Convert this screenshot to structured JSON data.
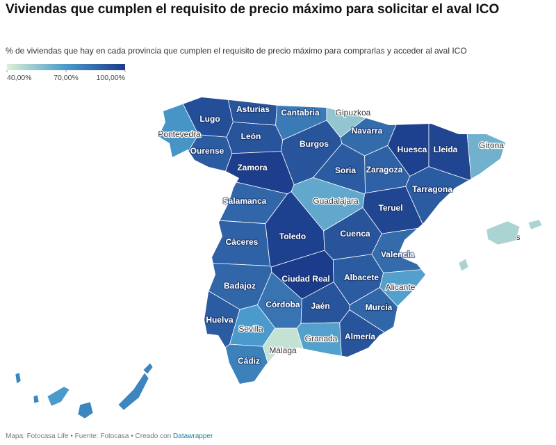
{
  "chart_data": {
    "type": "choropleth",
    "title": "Viviendas que cumplen el requisito de precio máximo para solicitar el aval ICO",
    "subtitle": "% de viviendas que hay en cada provincia que cumplen el requisito de precio máximo para comprarlas y acceder al aval ICO",
    "colors": [
      "#dcf0d6",
      "#4a9acb",
      "#1b3b8b"
    ],
    "range": [
      40,
      100
    ],
    "ticks": [
      {
        "value": 40,
        "label": "40,00%"
      },
      {
        "value": 70,
        "label": "70,00%"
      },
      {
        "value": 100,
        "label": "100,00%"
      }
    ],
    "categories": [
      "Asturias",
      "Cantabria",
      "Gipuzkoa",
      "Lugo",
      "Navarra",
      "Pontevedra",
      "León",
      "Huesca",
      "Lleida",
      "Girona",
      "Burgos",
      "Ourense",
      "Zamora",
      "Soria",
      "Zaragoza",
      "Tarragona",
      "Salamanca",
      "Guadalajara",
      "Teruel",
      "Cáceres",
      "Toledo",
      "Cuenca",
      "Valencia",
      "Ciudad Real",
      "Badajoz",
      "Albacete",
      "Alicante",
      "Córdoba",
      "Jaén",
      "Murcia",
      "Huelva",
      "Sevilla",
      "Granada",
      "Almería",
      "Málaga",
      "Cádiz",
      "Baleares"
    ],
    "values": [
      92,
      80,
      55,
      94,
      85,
      72,
      92,
      98,
      97,
      62,
      92,
      90,
      99,
      90,
      88,
      90,
      86,
      65,
      97,
      88,
      98,
      92,
      85,
      100,
      86,
      90,
      68,
      82,
      92,
      86,
      90,
      70,
      68,
      92,
      45,
      78,
      50
    ]
  },
  "footer": {
    "source": "Mapa: Fotocasa Life • Fuente: Fotocasa • Creado con",
    "link": "Datawrapper"
  }
}
